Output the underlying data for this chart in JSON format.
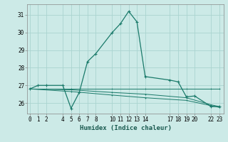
{
  "xlabel": "Humidex (Indice chaleur)",
  "bg_color": "#cceae7",
  "grid_color": "#aad4d0",
  "line_color": "#1a7a6a",
  "series": [
    {
      "x": [
        0,
        1,
        2,
        4,
        5,
        6,
        7,
        8,
        10,
        11,
        12,
        13,
        14,
        17,
        18,
        19,
        20,
        22,
        23
      ],
      "y": [
        26.8,
        27.0,
        27.0,
        27.0,
        25.7,
        26.6,
        28.35,
        28.8,
        30.0,
        30.5,
        31.2,
        30.6,
        27.5,
        27.3,
        27.2,
        26.35,
        26.4,
        25.8,
        25.8
      ]
    },
    {
      "x": [
        0,
        2,
        5,
        10,
        14,
        19,
        22,
        23
      ],
      "y": [
        26.8,
        26.8,
        26.8,
        26.8,
        26.8,
        26.8,
        26.8,
        26.8
      ]
    },
    {
      "x": [
        0,
        5,
        10,
        14,
        19,
        22,
        23
      ],
      "y": [
        26.8,
        26.75,
        26.6,
        26.5,
        26.3,
        25.9,
        25.8
      ]
    },
    {
      "x": [
        0,
        5,
        10,
        14,
        19,
        22,
        23
      ],
      "y": [
        26.8,
        26.65,
        26.45,
        26.3,
        26.15,
        25.85,
        25.75
      ]
    }
  ],
  "yticks": [
    26,
    27,
    28,
    29,
    30,
    31
  ],
  "xticks": [
    0,
    1,
    2,
    4,
    5,
    6,
    7,
    8,
    10,
    11,
    12,
    13,
    14,
    17,
    18,
    19,
    20,
    22,
    23
  ],
  "xlim": [
    -0.3,
    23.5
  ],
  "ylim": [
    25.4,
    31.6
  ],
  "label_fontsize": 6.5,
  "tick_fontsize": 5.5
}
